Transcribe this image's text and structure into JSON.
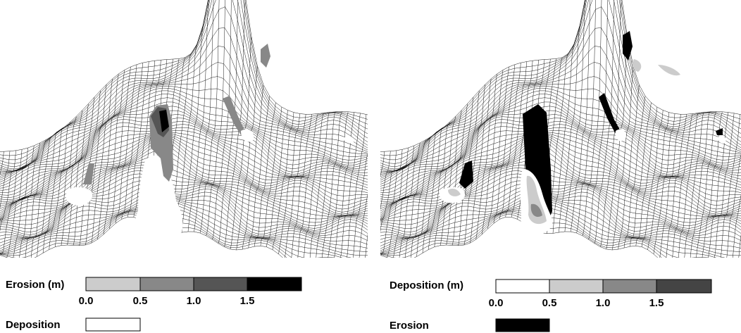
{
  "left_panel": {
    "legend_title": "Erosion (m)",
    "scale_labels": [
      "0.0",
      "0.5",
      "1.0",
      "1.5"
    ],
    "swatch_label": "Deposition"
  },
  "right_panel": {
    "legend_title": "Deposition (m)",
    "scale_labels": [
      "0.0",
      "0.5",
      "1.0",
      "1.5"
    ],
    "swatch_label": "Erosion"
  }
}
